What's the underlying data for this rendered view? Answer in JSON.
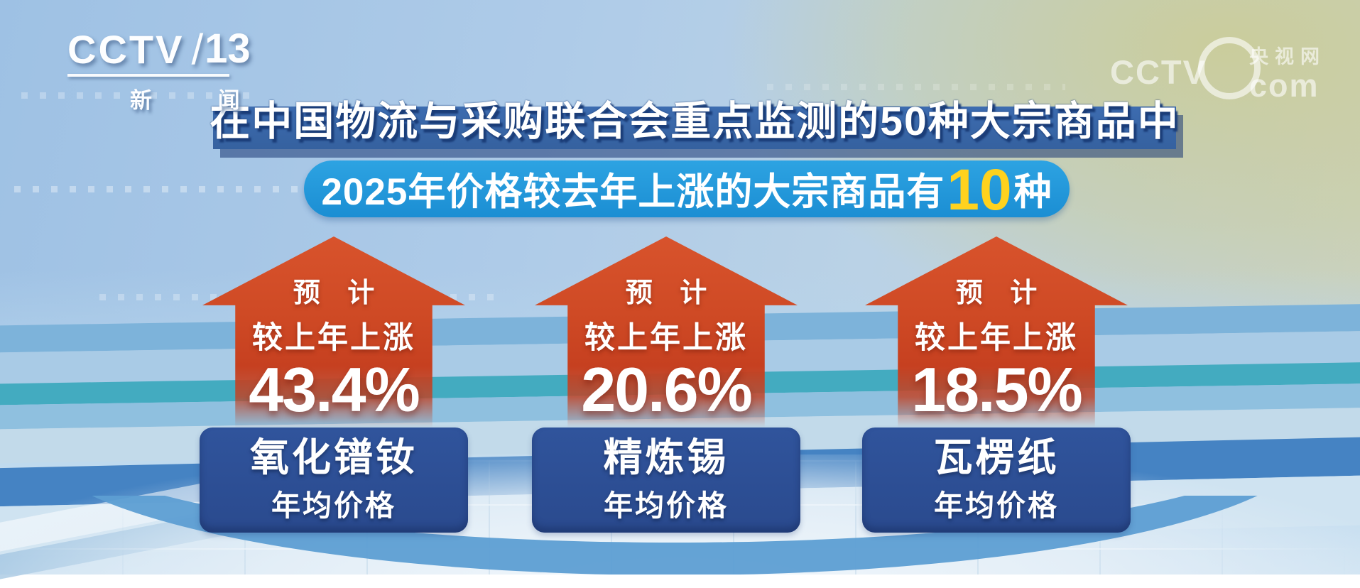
{
  "chart_data": {
    "type": "bar",
    "title": "在中国物流与采购联合会重点监测的50种大宗商品中",
    "subtitle": "2025年价格较去年上涨的大宗商品有10种",
    "annotation": "预计较上年上涨",
    "categories": [
      "氧化镨钕年均价格",
      "精炼锡年均价格",
      "瓦楞纸年均价格"
    ],
    "values": [
      43.4,
      20.6,
      18.5
    ],
    "unit": "%",
    "value_labels": [
      "43.4%",
      "20.6%",
      "18.5%"
    ],
    "legend": false,
    "grid": false
  },
  "branding": {
    "channel": {
      "name": "CCTV",
      "slash": "/",
      "number": "13",
      "subtitle": "新 闻"
    },
    "watermark": {
      "name": "CCTV",
      "site": "央视网",
      "domain": "com"
    }
  },
  "header": {
    "text": "在中国物流与采购联合会重点监测的50种大宗商品中"
  },
  "subheader": {
    "prefix": "2025年价格较去年上涨的大宗商品有",
    "highlight": "10",
    "suffix": "种"
  },
  "items": [
    {
      "forecast_line1": "预 计",
      "forecast_line2": "较上年上涨",
      "value": "43.4%",
      "product": "氧化镨钕",
      "label": "年均价格"
    },
    {
      "forecast_line1": "预 计",
      "forecast_line2": "较上年上涨",
      "value": "20.6%",
      "product": "精炼锡",
      "label": "年均价格"
    },
    {
      "forecast_line1": "预 计",
      "forecast_line2": "较上年上涨",
      "value": "18.5%",
      "product": "瓦楞纸",
      "label": "年均价格"
    }
  ],
  "colors": {
    "arrow": "#cc4522",
    "product_box": "#2c4d92",
    "pill": "#2096d9",
    "header_banner": "#35619f",
    "highlight_number": "#ffd21e",
    "teal_stripe": "#43abc0",
    "ring": "#5d9ed3"
  }
}
